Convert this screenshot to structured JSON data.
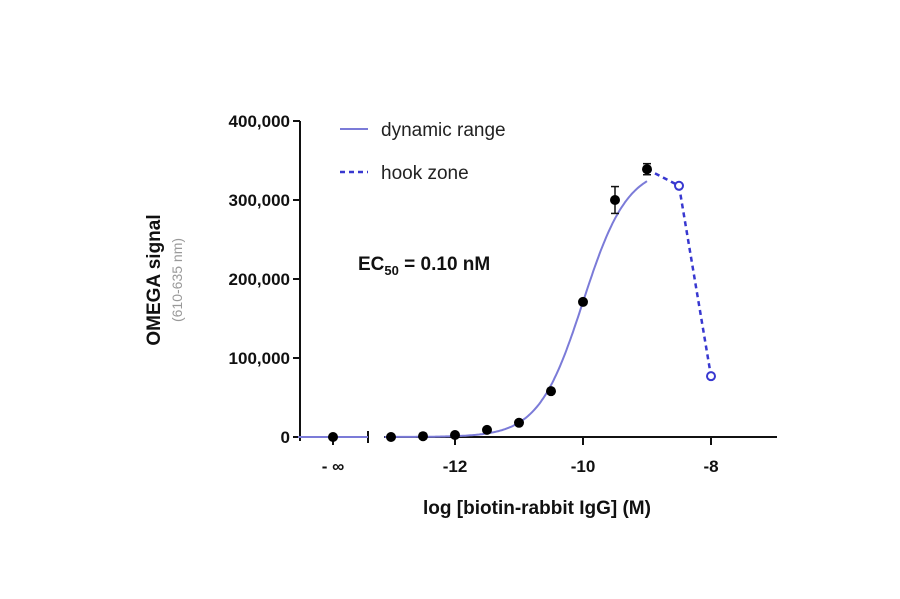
{
  "chart_data": {
    "type": "scatter",
    "xlabel": "log [biotin-rabbit IgG] (M)",
    "ylabel": "OMEGA signal",
    "ylabel_sub": "(610-635 nm)",
    "annotation": {
      "prefix": "EC",
      "subscript": "50",
      "suffix": " = 0.10 nM"
    },
    "ylim": [
      0,
      400000
    ],
    "xlim": [
      -13.1,
      -7
    ],
    "x_break": true,
    "y_ticks": [
      {
        "v": 0,
        "label": "0"
      },
      {
        "v": 100000,
        "label": "100,000"
      },
      {
        "v": 200000,
        "label": "200,000"
      },
      {
        "v": 300000,
        "label": "300,000"
      },
      {
        "v": 400000,
        "label": "400,000"
      }
    ],
    "x_ticks": [
      {
        "v": "-inf",
        "label": "- ∞"
      },
      {
        "v": -12,
        "label": "-12"
      },
      {
        "v": -10,
        "label": "-10"
      },
      {
        "v": -8,
        "label": "-8"
      }
    ],
    "legend": {
      "position": "top-left",
      "entries": [
        {
          "label": "dynamic range",
          "style": "solid"
        },
        {
          "label": "hook zone",
          "style": "dashed"
        }
      ]
    },
    "colors": {
      "dynamic_range": "#7b7bd8",
      "hook_zone": "#3838d0",
      "points": "#000000"
    },
    "series": [
      {
        "name": "dynamic range",
        "fit": {
          "model": "4PL",
          "bottom": 0,
          "top": 342000,
          "logEC50": -10,
          "hill": 1.25
        },
        "points": [
          {
            "x": "-inf",
            "y": 0
          },
          {
            "x": -13,
            "y": 0
          },
          {
            "x": -12.5,
            "y": 1000
          },
          {
            "x": -12,
            "y": 2500
          },
          {
            "x": -11.5,
            "y": 9000
          },
          {
            "x": -11,
            "y": 18000
          },
          {
            "x": -10.5,
            "y": 58000
          },
          {
            "x": -10,
            "y": 171000
          },
          {
            "x": -9.5,
            "y": 300000,
            "err": 17000
          },
          {
            "x": -9,
            "y": 339000,
            "err": 7000
          }
        ]
      },
      {
        "name": "hook zone",
        "points": [
          {
            "x": -9,
            "y": 339000
          },
          {
            "x": -8.5,
            "y": 318000
          },
          {
            "x": -8,
            "y": 77000
          }
        ]
      }
    ]
  }
}
